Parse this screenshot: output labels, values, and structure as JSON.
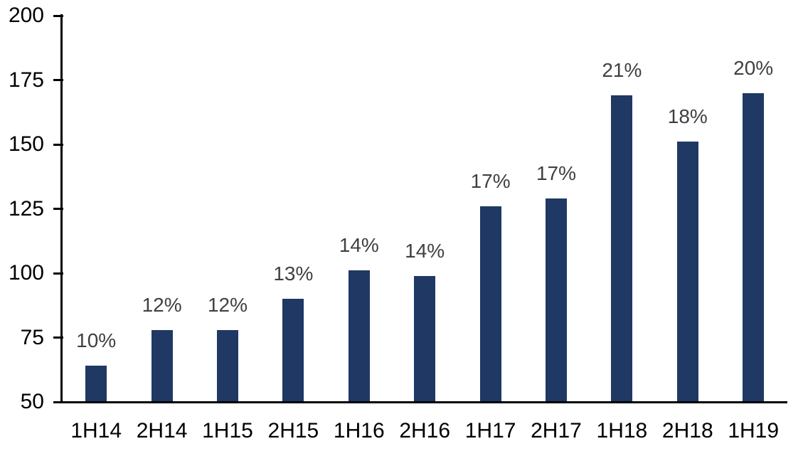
{
  "chart_data": {
    "type": "bar",
    "title": "",
    "xlabel": "",
    "ylabel": "",
    "categories": [
      "1H14",
      "2H14",
      "1H15",
      "2H15",
      "1H16",
      "2H16",
      "1H17",
      "2H17",
      "1H18",
      "2H18",
      "1H19"
    ],
    "values": [
      64,
      78,
      78,
      90,
      101,
      99,
      126,
      129,
      169,
      151,
      170
    ],
    "bar_labels": [
      "10%",
      "12%",
      "12%",
      "13%",
      "14%",
      "14%",
      "17%",
      "17%",
      "21%",
      "18%",
      "20%"
    ],
    "ylim": [
      50,
      200
    ],
    "yticks": [
      50,
      75,
      100,
      125,
      150,
      175,
      200
    ],
    "grid": false,
    "legend": false,
    "colors": {
      "bar": "#1f3864",
      "bar_label": "#404040",
      "axis_line": "#000000",
      "axis_text": "#000000",
      "background": "#ffffff"
    }
  }
}
